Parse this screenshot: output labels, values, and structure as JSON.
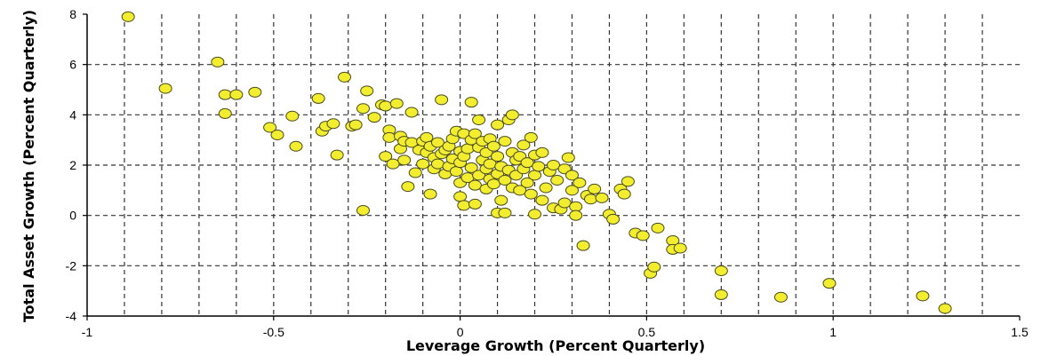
{
  "chart_data": {
    "type": "scatter",
    "title": "",
    "xlabel": "Leverage Growth (Percent Quarterly)",
    "ylabel": "Total Asset Growth (Percent Quarterly)",
    "xlim": [
      -1,
      1.5
    ],
    "ylim": [
      -4,
      8
    ],
    "xticks": [
      -1,
      -0.5,
      0,
      0.5,
      1,
      1.5
    ],
    "xtick_labels": [
      "-1",
      "-0.5",
      "0",
      "0.5",
      "1",
      "1.5"
    ],
    "yticks": [
      -4,
      -2,
      0,
      2,
      4,
      6,
      8
    ],
    "ytick_labels": [
      "-4",
      "-2",
      "0",
      "2",
      "4",
      "6",
      "8"
    ],
    "vertical_grid": [
      -0.9,
      -0.8,
      -0.7,
      -0.6,
      -0.5,
      -0.4,
      -0.3,
      -0.2,
      -0.1,
      0,
      0.1,
      0.2,
      0.3,
      0.4,
      0.5,
      0.6,
      0.7,
      0.8,
      0.9,
      1,
      1.1,
      1.2,
      1.3,
      1.4
    ],
    "horizontal_grid": [
      -2,
      0,
      2,
      4,
      6
    ],
    "grid": "dashed",
    "marker_color": "#f2ee2f",
    "marker_edge_color": "#4a4a1a",
    "points": [
      [
        -0.89,
        7.9
      ],
      [
        -0.79,
        5.05
      ],
      [
        -0.65,
        6.1
      ],
      [
        -0.63,
        4.8
      ],
      [
        -0.63,
        4.05
      ],
      [
        -0.6,
        4.8
      ],
      [
        -0.55,
        4.9
      ],
      [
        -0.51,
        3.5
      ],
      [
        -0.49,
        3.2
      ],
      [
        -0.45,
        3.95
      ],
      [
        -0.44,
        2.75
      ],
      [
        -0.38,
        4.65
      ],
      [
        -0.37,
        3.35
      ],
      [
        -0.36,
        3.55
      ],
      [
        -0.34,
        3.65
      ],
      [
        -0.33,
        2.4
      ],
      [
        -0.31,
        5.5
      ],
      [
        -0.29,
        3.55
      ],
      [
        -0.28,
        3.6
      ],
      [
        -0.26,
        4.25
      ],
      [
        -0.25,
        4.95
      ],
      [
        -0.26,
        0.2
      ],
      [
        -0.23,
        3.9
      ],
      [
        -0.21,
        4.4
      ],
      [
        -0.2,
        4.35
      ],
      [
        -0.19,
        3.4
      ],
      [
        -0.2,
        2.35
      ],
      [
        -0.18,
        2.05
      ],
      [
        -0.19,
        3.1
      ],
      [
        -0.17,
        4.45
      ],
      [
        -0.16,
        3.15
      ],
      [
        -0.16,
        2.65
      ],
      [
        -0.15,
        2.2
      ],
      [
        -0.14,
        1.15
      ],
      [
        -0.15,
        2.95
      ],
      [
        -0.13,
        4.1
      ],
      [
        -0.13,
        2.9
      ],
      [
        -0.12,
        1.7
      ],
      [
        -0.11,
        2.6
      ],
      [
        -0.1,
        2.95
      ],
      [
        -0.1,
        2.05
      ],
      [
        -0.09,
        3.1
      ],
      [
        -0.09,
        2.5
      ],
      [
        -0.08,
        2.75
      ],
      [
        -0.08,
        0.85
      ],
      [
        -0.07,
        1.85
      ],
      [
        -0.07,
        2.3
      ],
      [
        -0.06,
        2.05
      ],
      [
        -0.06,
        2.9
      ],
      [
        -0.05,
        4.6
      ],
      [
        -0.05,
        2.45
      ],
      [
        -0.04,
        1.65
      ],
      [
        -0.04,
        2.6
      ],
      [
        -0.03,
        1.95
      ],
      [
        -0.03,
        2.75
      ],
      [
        -0.02,
        2.25
      ],
      [
        -0.02,
        3.05
      ],
      [
        -0.01,
        1.75
      ],
      [
        -0.01,
        3.35
      ],
      [
        0.0,
        2.55
      ],
      [
        0.0,
        1.3
      ],
      [
        0.0,
        0.75
      ],
      [
        0.0,
        2.1
      ],
      [
        0.01,
        3.25
      ],
      [
        0.01,
        2.35
      ],
      [
        0.01,
        0.4
      ],
      [
        0.02,
        1.5
      ],
      [
        0.02,
        2.65
      ],
      [
        0.03,
        3.0
      ],
      [
        0.03,
        1.9
      ],
      [
        0.03,
        4.5
      ],
      [
        0.04,
        1.2
      ],
      [
        0.04,
        0.45
      ],
      [
        0.04,
        3.25
      ],
      [
        0.05,
        2.7
      ],
      [
        0.05,
        1.6
      ],
      [
        0.05,
        3.8
      ],
      [
        0.06,
        2.2
      ],
      [
        0.06,
        2.95
      ],
      [
        0.07,
        1.85
      ],
      [
        0.07,
        1.05
      ],
      [
        0.07,
        2.5
      ],
      [
        0.08,
        1.45
      ],
      [
        0.08,
        2.05
      ],
      [
        0.08,
        3.05
      ],
      [
        0.09,
        2.75
      ],
      [
        0.09,
        1.25
      ],
      [
        0.1,
        0.1
      ],
      [
        0.1,
        1.65
      ],
      [
        0.1,
        2.35
      ],
      [
        0.1,
        3.6
      ],
      [
        0.11,
        1.95
      ],
      [
        0.11,
        0.6
      ],
      [
        0.12,
        1.4
      ],
      [
        0.12,
        2.95
      ],
      [
        0.12,
        0.1
      ],
      [
        0.13,
        1.8
      ],
      [
        0.13,
        3.8
      ],
      [
        0.14,
        2.5
      ],
      [
        0.14,
        1.1
      ],
      [
        0.14,
        4.0
      ],
      [
        0.15,
        2.2
      ],
      [
        0.15,
        1.6
      ],
      [
        0.16,
        2.35
      ],
      [
        0.16,
        1.0
      ],
      [
        0.17,
        1.85
      ],
      [
        0.17,
        2.8
      ],
      [
        0.18,
        1.3
      ],
      [
        0.18,
        2.1
      ],
      [
        0.19,
        3.1
      ],
      [
        0.19,
        0.85
      ],
      [
        0.2,
        1.6
      ],
      [
        0.2,
        2.4
      ],
      [
        0.2,
        0.05
      ],
      [
        0.21,
        1.95
      ],
      [
        0.22,
        0.6
      ],
      [
        0.22,
        2.5
      ],
      [
        0.23,
        1.1
      ],
      [
        0.24,
        1.75
      ],
      [
        0.25,
        0.3
      ],
      [
        0.25,
        2.0
      ],
      [
        0.26,
        1.4
      ],
      [
        0.27,
        0.25
      ],
      [
        0.28,
        1.85
      ],
      [
        0.28,
        0.5
      ],
      [
        0.29,
        2.3
      ],
      [
        0.3,
        1.0
      ],
      [
        0.3,
        1.6
      ],
      [
        0.31,
        0.35
      ],
      [
        0.31,
        0.0
      ],
      [
        0.32,
        1.3
      ],
      [
        0.33,
        -1.2
      ],
      [
        0.34,
        0.8
      ],
      [
        0.35,
        0.65
      ],
      [
        0.36,
        1.05
      ],
      [
        0.38,
        0.7
      ],
      [
        0.4,
        0.05
      ],
      [
        0.41,
        -0.15
      ],
      [
        0.43,
        1.05
      ],
      [
        0.44,
        0.85
      ],
      [
        0.45,
        1.35
      ],
      [
        0.47,
        -0.7
      ],
      [
        0.49,
        -0.8
      ],
      [
        0.51,
        -2.3
      ],
      [
        0.52,
        -2.05
      ],
      [
        0.53,
        -0.5
      ],
      [
        0.57,
        -1.0
      ],
      [
        0.57,
        -1.35
      ],
      [
        0.59,
        -1.3
      ],
      [
        0.7,
        -2.2
      ],
      [
        0.7,
        -3.15
      ],
      [
        0.86,
        -3.25
      ],
      [
        0.99,
        -2.7
      ],
      [
        1.24,
        -3.2
      ],
      [
        1.3,
        -3.7
      ]
    ]
  }
}
